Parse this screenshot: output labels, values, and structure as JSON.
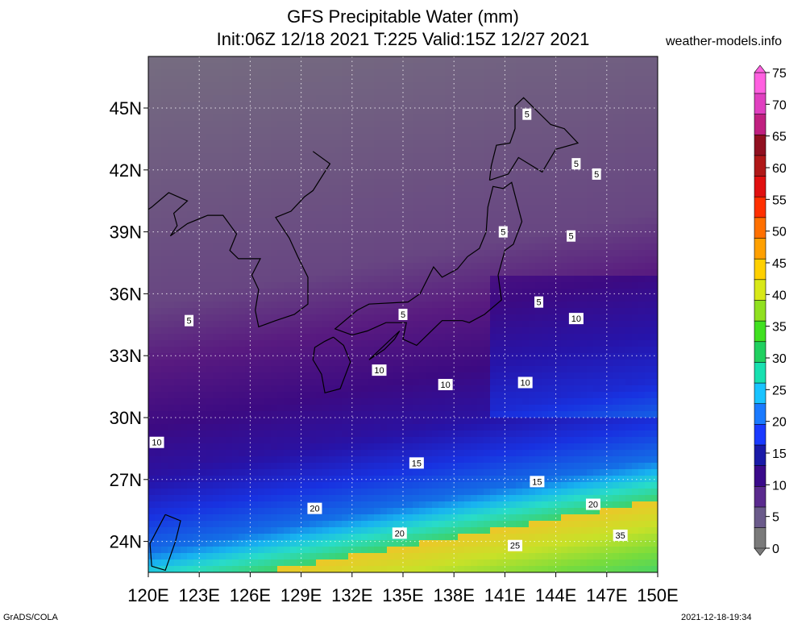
{
  "header": {
    "title": "GFS Precipitable Water (mm)",
    "subtitle": "Init:06Z 12/18 2021 T:225 Valid:15Z 12/27 2021",
    "site": "weather-models.info"
  },
  "footer": {
    "left": "GrADS/COLA",
    "right": "2021-12-18-19:34"
  },
  "chart_data": {
    "type": "heatmap",
    "title": "GFS Precipitable Water (mm)",
    "xlabel": "",
    "ylabel": "",
    "xlim": [
      120,
      150
    ],
    "ylim": [
      22.5,
      47.5
    ],
    "x_ticks": [
      120,
      123,
      126,
      129,
      132,
      135,
      138,
      141,
      144,
      147,
      150
    ],
    "x_tick_labels": [
      "120E",
      "123E",
      "126E",
      "129E",
      "132E",
      "135E",
      "138E",
      "141E",
      "144E",
      "147E",
      "150E"
    ],
    "y_ticks": [
      24,
      27,
      30,
      33,
      36,
      39,
      42,
      45
    ],
    "y_tick_labels": [
      "24N",
      "27N",
      "30N",
      "33N",
      "36N",
      "39N",
      "42N",
      "45N"
    ],
    "grid": true,
    "colorbar": {
      "levels": [
        0,
        5,
        10,
        15,
        20,
        25,
        30,
        35,
        40,
        45,
        50,
        55,
        60,
        65,
        70,
        75
      ],
      "labels": [
        "0",
        "5",
        "10",
        "15",
        "20",
        "25",
        "30",
        "35",
        "40",
        "45",
        "50",
        "55",
        "60",
        "65",
        "70",
        "75"
      ],
      "colors": [
        "#7a7a7a",
        "#6a5a8a",
        "#5a2a8e",
        "#3a0a8a",
        "#1a1aa8",
        "#1a3aff",
        "#1a7aff",
        "#19c3ff",
        "#18e0b0",
        "#20d060",
        "#40e020",
        "#90e020",
        "#d8e818",
        "#ffd000",
        "#ffa000",
        "#ff7000",
        "#ff3000",
        "#e01010",
        "#b01818",
        "#901020",
        "#c02080",
        "#e040c0",
        "#ff60e0"
      ]
    },
    "contour_labels": [
      {
        "text": "5",
        "lon": 142.3,
        "lat": 44.7
      },
      {
        "text": "5",
        "lon": 145.2,
        "lat": 42.3
      },
      {
        "text": "5",
        "lon": 146.4,
        "lat": 41.8
      },
      {
        "text": "5",
        "lon": 140.9,
        "lat": 39.0
      },
      {
        "text": "5",
        "lon": 144.9,
        "lat": 38.8
      },
      {
        "text": "5",
        "lon": 143.0,
        "lat": 35.6
      },
      {
        "text": "5",
        "lon": 135.0,
        "lat": 35.0
      },
      {
        "text": "5",
        "lon": 122.4,
        "lat": 34.7
      },
      {
        "text": "10",
        "lon": 145.2,
        "lat": 34.8
      },
      {
        "text": "10",
        "lon": 133.6,
        "lat": 32.3
      },
      {
        "text": "10",
        "lon": 137.5,
        "lat": 31.6
      },
      {
        "text": "10",
        "lon": 142.2,
        "lat": 31.7
      },
      {
        "text": "10",
        "lon": 120.5,
        "lat": 28.8
      },
      {
        "text": "15",
        "lon": 135.8,
        "lat": 27.8
      },
      {
        "text": "15",
        "lon": 142.9,
        "lat": 26.9
      },
      {
        "text": "20",
        "lon": 129.8,
        "lat": 25.6
      },
      {
        "text": "20",
        "lon": 146.2,
        "lat": 25.8
      },
      {
        "text": "20",
        "lon": 134.8,
        "lat": 24.4
      },
      {
        "text": "25",
        "lon": 141.6,
        "lat": 23.8
      },
      {
        "text": "35",
        "lon": 147.8,
        "lat": 24.3
      }
    ]
  }
}
